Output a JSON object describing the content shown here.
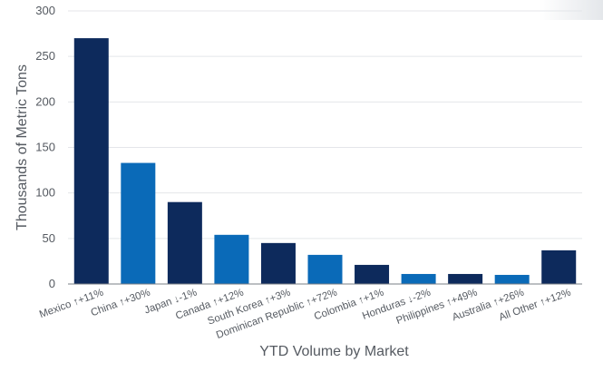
{
  "chart_data": {
    "type": "bar",
    "categories": [
      "Mexico  ↑+11%",
      "China  ↑+30%",
      "Japan  ↓-1%",
      "Canada  ↑+12%",
      "South Korea  ↑+3%",
      "Dominican Republic  ↑+72%",
      "Colombia  ↑+1%",
      "Honduras  ↓-2%",
      "Philippines  ↑+49%",
      "Australia  ↑+26%",
      "All Other  ↑+12%"
    ],
    "values": [
      270,
      133,
      90,
      54,
      45,
      32,
      21,
      11,
      11,
      10,
      37
    ],
    "bar_colors": [
      "#0d2a5c",
      "#0a6ab8",
      "#0d2a5c",
      "#0a6ab8",
      "#0d2a5c",
      "#0a6ab8",
      "#0d2a5c",
      "#0a6ab8",
      "#0d2a5c",
      "#0a6ab8",
      "#0d2a5c"
    ],
    "ylim": [
      0,
      300
    ],
    "yticks": [
      0,
      50,
      100,
      150,
      200,
      250,
      300
    ],
    "ylabel": "Thousands of Metric Tons",
    "xlabel": "YTD Volume by Market",
    "grid": true
  }
}
